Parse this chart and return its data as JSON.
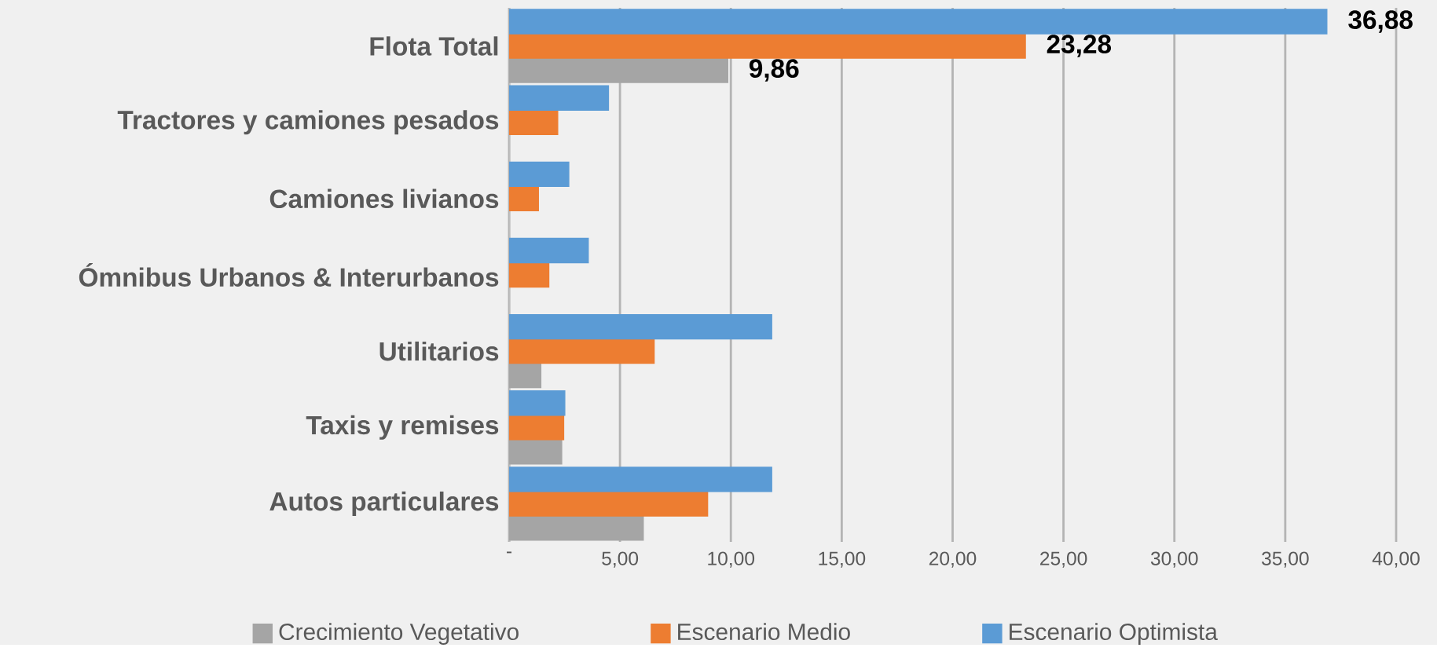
{
  "chart_data": {
    "type": "bar",
    "orientation": "horizontal",
    "categories": [
      "Flota Total",
      "Tractores y camiones pesados",
      "Camiones livianos",
      "Ómnibus Urbanos & Interurbanos",
      "Utilitarios",
      "Taxis y remises",
      "Autos particulares"
    ],
    "series": [
      {
        "name": "Crecimiento Vegetativo",
        "color": "#a5a5a5",
        "values": [
          9.86,
          null,
          null,
          null,
          1.43,
          2.37,
          6.05
        ],
        "value_labels": [
          "9,86",
          null,
          null,
          null,
          null,
          null,
          null
        ]
      },
      {
        "name": "Escenario   Medio",
        "color": "#ed7d31",
        "values": [
          23.28,
          2.19,
          1.32,
          1.79,
          6.54,
          2.46,
          8.95
        ],
        "value_labels": [
          "23,28",
          null,
          null,
          null,
          null,
          null,
          null
        ]
      },
      {
        "name": "Escenario Optimista",
        "color": "#5b9bd5",
        "values": [
          36.88,
          4.48,
          2.69,
          3.57,
          11.84,
          2.51,
          11.84
        ],
        "value_labels": [
          "36,88",
          null,
          null,
          null,
          null,
          null,
          null
        ]
      }
    ],
    "xlim": [
      0,
      40
    ],
    "xticks": [
      {
        "value": 0,
        "label": "-"
      },
      {
        "value": 5,
        "label": "5,00"
      },
      {
        "value": 10,
        "label": "10,00"
      },
      {
        "value": 15,
        "label": "15,00"
      },
      {
        "value": 20,
        "label": "20,00"
      },
      {
        "value": 25,
        "label": "25,00"
      },
      {
        "value": 30,
        "label": "30,00"
      },
      {
        "value": 35,
        "label": "35,00"
      },
      {
        "value": 40,
        "label": "40,00"
      }
    ],
    "grid": "x",
    "legend": "bottom"
  }
}
